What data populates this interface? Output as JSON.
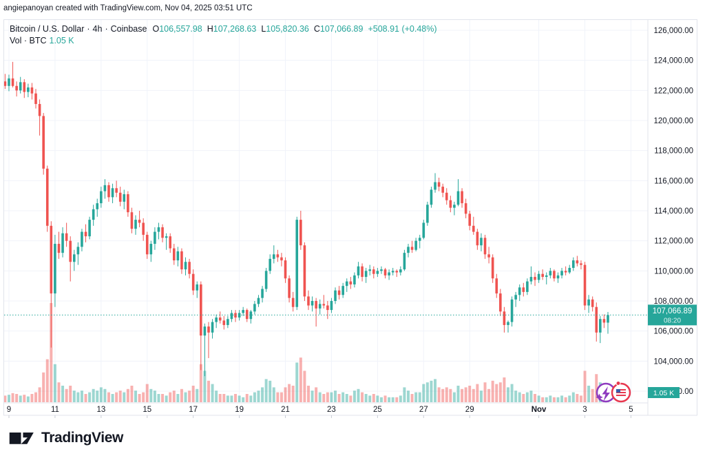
{
  "attribution": "angiepanoyan created with TradingView.com, Nov 04, 2025 03:51 UTC",
  "legend": {
    "symbol": "Bitcoin / U.S. Dollar",
    "separator": "·",
    "interval": "4h",
    "exchange": "Coinbase",
    "o_label": "O",
    "o_value": "106,557.98",
    "h_label": "H",
    "h_value": "107,268.63",
    "l_label": "L",
    "l_value": "105,820.36",
    "c_label": "C",
    "c_value": "107,066.89",
    "change": "+508.91 (+0.48%)",
    "vol_label": "Vol · BTC",
    "vol_value": "1.05 K"
  },
  "price_badge": {
    "price": "107,066.89",
    "countdown": "08:20"
  },
  "volume_badge": {
    "label": "1.05 K"
  },
  "logo_text": "TradingView",
  "events": [
    {
      "name": "crypto-event-marker",
      "icon": "lightning-sparkle"
    },
    {
      "name": "us-economic-event-marker",
      "icon": "us-flag"
    }
  ],
  "colors": {
    "up": "#26a69a",
    "down": "#ef5350",
    "vol_up": "rgba(38,166,154,0.45)",
    "vol_down": "rgba(239,83,80,0.45)",
    "grid": "#f0f3fa",
    "border": "#e0e3eb",
    "tick": "#c9cdd6",
    "text": "#131722",
    "badge_bg": "#26a69a",
    "badge_text": "#ffffff",
    "event_purple": "#8e3bbf",
    "event_red": "#e8384f",
    "flag_blue": "#3b5aa9"
  },
  "chart_data": {
    "type": "candlestick+volume",
    "title": "Bitcoin / U.S. Dollar",
    "exchange": "Coinbase",
    "candle_interval": "4h",
    "current_price": 107066.89,
    "current_price_label": "107,066.89",
    "countdown": "08:20",
    "current_volume_label": "1.05 K",
    "y_axis": {
      "labels": [
        {
          "text": "126,000.00",
          "price": 126000
        },
        {
          "text": "124,000.00",
          "price": 124000
        },
        {
          "text": "122,000.00",
          "price": 122000
        },
        {
          "text": "120,000.00",
          "price": 120000
        },
        {
          "text": "118,000.00",
          "price": 118000
        },
        {
          "text": "116,000.00",
          "price": 116000
        },
        {
          "text": "114,000.00",
          "price": 114000
        },
        {
          "text": "112,000.00",
          "price": 112000
        },
        {
          "text": "110,000.00",
          "price": 110000
        },
        {
          "text": "108,000.00",
          "price": 108000
        },
        {
          "text": "106,000.00",
          "price": 106000
        },
        {
          "text": "104,000.00",
          "price": 104000
        },
        {
          "text": "102,000.00",
          "price": 102000
        }
      ]
    },
    "x_axis": {
      "ticks": [
        {
          "label": "9",
          "day": 0,
          "bold": false
        },
        {
          "label": "11",
          "day": 2,
          "bold": false
        },
        {
          "label": "13",
          "day": 4,
          "bold": false
        },
        {
          "label": "15",
          "day": 6,
          "bold": false
        },
        {
          "label": "17",
          "day": 8,
          "bold": false
        },
        {
          "label": "19",
          "day": 10,
          "bold": false
        },
        {
          "label": "21",
          "day": 12,
          "bold": false
        },
        {
          "label": "23",
          "day": 14,
          "bold": false
        },
        {
          "label": "25",
          "day": 16,
          "bold": false
        },
        {
          "label": "27",
          "day": 18,
          "bold": false
        },
        {
          "label": "29",
          "day": 20,
          "bold": false
        },
        {
          "label": "Nov",
          "day": 23,
          "bold": true
        },
        {
          "label": "3",
          "day": 25,
          "bold": false
        },
        {
          "label": "5",
          "day": 27,
          "bold": false
        }
      ]
    },
    "candles": [
      [
        122600,
        123100,
        122100,
        122300,
        0.4
      ],
      [
        122300,
        123050,
        121950,
        122800,
        0.45
      ],
      [
        122800,
        123900,
        122200,
        122300,
        0.55
      ],
      [
        122300,
        122600,
        121600,
        122000,
        0.5
      ],
      [
        122000,
        122900,
        121800,
        122550,
        0.4
      ],
      [
        122550,
        122750,
        121500,
        121900,
        0.45
      ],
      [
        121900,
        122450,
        121550,
        122200,
        0.35
      ],
      [
        122200,
        122500,
        121400,
        121800,
        0.5
      ],
      [
        121800,
        122100,
        120800,
        121100,
        0.6
      ],
      [
        121100,
        121400,
        119000,
        120300,
        0.9
      ],
      [
        120300,
        120500,
        116400,
        116800,
        1.8
      ],
      [
        116800,
        117000,
        112600,
        113000,
        2.6
      ],
      [
        113000,
        113300,
        104900,
        108500,
        6.0
      ],
      [
        108500,
        112400,
        107600,
        111800,
        2.3
      ],
      [
        111800,
        112600,
        110800,
        111200,
        1.2
      ],
      [
        111200,
        112900,
        110900,
        112500,
        1.0
      ],
      [
        112500,
        113200,
        111600,
        112000,
        0.8
      ],
      [
        112000,
        112300,
        109300,
        110600,
        1.0
      ],
      [
        110600,
        111400,
        110000,
        111100,
        0.7
      ],
      [
        111100,
        111900,
        110400,
        111600,
        0.6
      ],
      [
        111600,
        112800,
        111300,
        112600,
        0.7
      ],
      [
        112600,
        113100,
        111900,
        112300,
        0.5
      ],
      [
        112300,
        113600,
        112100,
        113400,
        0.6
      ],
      [
        113400,
        114400,
        113000,
        114100,
        0.8
      ],
      [
        114100,
        114800,
        113600,
        114500,
        0.7
      ],
      [
        114500,
        115600,
        114200,
        115300,
        0.9
      ],
      [
        115300,
        116100,
        114800,
        115700,
        0.8
      ],
      [
        115700,
        115900,
        114600,
        114900,
        0.6
      ],
      [
        114900,
        115800,
        114500,
        115500,
        0.5
      ],
      [
        115500,
        116000,
        114900,
        115200,
        0.6
      ],
      [
        115200,
        115600,
        114300,
        114600,
        0.7
      ],
      [
        114600,
        115400,
        114100,
        115100,
        0.6
      ],
      [
        115100,
        115300,
        113600,
        113900,
        0.8
      ],
      [
        113900,
        114200,
        112500,
        112800,
        1.0
      ],
      [
        112800,
        113700,
        112400,
        113400,
        0.7
      ],
      [
        113400,
        114000,
        112900,
        113200,
        0.5
      ],
      [
        113200,
        113500,
        112000,
        112400,
        0.6
      ],
      [
        112400,
        112600,
        110800,
        111100,
        1.1
      ],
      [
        111100,
        112000,
        110600,
        111800,
        0.8
      ],
      [
        111800,
        112900,
        111400,
        112600,
        0.7
      ],
      [
        112600,
        113200,
        112100,
        112900,
        0.5
      ],
      [
        112900,
        113100,
        111900,
        112200,
        0.5
      ],
      [
        112200,
        112500,
        111400,
        112300,
        0.4
      ],
      [
        112300,
        112500,
        111200,
        111500,
        0.6
      ],
      [
        111500,
        111800,
        110400,
        110700,
        0.7
      ],
      [
        110700,
        111600,
        110300,
        111300,
        0.5
      ],
      [
        111300,
        111500,
        109800,
        110100,
        0.8
      ],
      [
        110100,
        110900,
        109700,
        110600,
        0.6
      ],
      [
        110600,
        110800,
        109500,
        109800,
        0.7
      ],
      [
        109800,
        110100,
        108400,
        108700,
        1.0
      ],
      [
        108700,
        109300,
        108200,
        109100,
        0.8
      ],
      [
        109100,
        109300,
        103400,
        105700,
        2.3
      ],
      [
        105700,
        106500,
        103000,
        106300,
        1.9
      ],
      [
        106300,
        106600,
        104200,
        105900,
        1.3
      ],
      [
        105900,
        106800,
        105500,
        106600,
        1.1
      ],
      [
        106600,
        107100,
        106200,
        106900,
        0.7
      ],
      [
        106900,
        107300,
        106500,
        106700,
        0.5
      ],
      [
        106700,
        107000,
        106100,
        106400,
        0.5
      ],
      [
        106400,
        107000,
        106200,
        106800,
        0.4
      ],
      [
        106800,
        107400,
        106600,
        107200,
        0.4
      ],
      [
        107200,
        107400,
        106600,
        106900,
        0.5
      ],
      [
        106900,
        107400,
        106700,
        107200,
        0.4
      ],
      [
        107200,
        107600,
        107000,
        107400,
        0.3
      ],
      [
        107400,
        107500,
        106600,
        106800,
        0.5
      ],
      [
        106800,
        107400,
        106500,
        107300,
        0.4
      ],
      [
        107300,
        108000,
        107100,
        107800,
        0.6
      ],
      [
        107800,
        108400,
        107600,
        108200,
        0.7
      ],
      [
        108200,
        109000,
        107900,
        108800,
        0.9
      ],
      [
        108800,
        110200,
        108600,
        110000,
        1.4
      ],
      [
        110000,
        111100,
        109800,
        110800,
        1.3
      ],
      [
        110800,
        111700,
        110500,
        111100,
        0.9
      ],
      [
        111100,
        111400,
        110600,
        110900,
        0.6
      ],
      [
        110900,
        111200,
        110300,
        110700,
        0.6
      ],
      [
        110700,
        110900,
        109200,
        109500,
        0.9
      ],
      [
        109500,
        109700,
        107900,
        108200,
        1.1
      ],
      [
        108200,
        108600,
        107300,
        107600,
        1.0
      ],
      [
        107600,
        113600,
        107400,
        113400,
        2.4
      ],
      [
        113400,
        114000,
        111400,
        111700,
        2.7
      ],
      [
        111700,
        111900,
        108000,
        108300,
        1.9
      ],
      [
        108300,
        108700,
        107400,
        107700,
        1.0
      ],
      [
        107700,
        108300,
        107300,
        108000,
        0.7
      ],
      [
        108000,
        108200,
        106300,
        107500,
        0.9
      ],
      [
        107500,
        108100,
        107100,
        107800,
        0.6
      ],
      [
        107800,
        108400,
        107500,
        107700,
        0.5
      ],
      [
        107700,
        108000,
        106800,
        107400,
        0.6
      ],
      [
        107400,
        108200,
        107200,
        108000,
        0.6
      ],
      [
        108000,
        108900,
        107800,
        108700,
        0.7
      ],
      [
        108700,
        109000,
        108100,
        108400,
        0.5
      ],
      [
        108400,
        109200,
        108200,
        109000,
        0.6
      ],
      [
        109000,
        109500,
        108600,
        109300,
        0.5
      ],
      [
        109300,
        109600,
        108800,
        109100,
        0.4
      ],
      [
        109100,
        109900,
        108900,
        109700,
        0.7
      ],
      [
        109700,
        110600,
        109500,
        110300,
        0.8
      ],
      [
        110300,
        110500,
        109300,
        109600,
        0.6
      ],
      [
        109600,
        110200,
        109200,
        110000,
        0.5
      ],
      [
        110000,
        110400,
        109700,
        110100,
        0.4
      ],
      [
        110100,
        110300,
        109500,
        109800,
        0.5
      ],
      [
        109800,
        110200,
        109600,
        110000,
        0.4
      ],
      [
        110000,
        110300,
        109800,
        110100,
        0.3
      ],
      [
        110100,
        110200,
        109500,
        109700,
        0.4
      ],
      [
        109700,
        110100,
        109400,
        109900,
        0.3
      ],
      [
        109900,
        110200,
        109700,
        110000,
        0.3
      ],
      [
        110000,
        110100,
        109600,
        109900,
        0.3
      ],
      [
        109900,
        110300,
        109700,
        110100,
        0.4
      ],
      [
        110100,
        111400,
        110000,
        111200,
        0.9
      ],
      [
        111200,
        111800,
        110900,
        111600,
        0.7
      ],
      [
        111600,
        112000,
        111200,
        111400,
        0.5
      ],
      [
        111400,
        112200,
        111300,
        112000,
        0.6
      ],
      [
        112000,
        112400,
        111500,
        112200,
        0.6
      ],
      [
        112200,
        113400,
        112100,
        113200,
        1.1
      ],
      [
        113200,
        114600,
        113000,
        114400,
        1.2
      ],
      [
        114400,
        115600,
        114200,
        115400,
        1.3
      ],
      [
        115400,
        116500,
        115200,
        115900,
        1.4
      ],
      [
        115900,
        116200,
        115300,
        115600,
        0.9
      ],
      [
        115600,
        115800,
        114900,
        115200,
        0.8
      ],
      [
        115200,
        115500,
        114400,
        114700,
        0.9
      ],
      [
        114700,
        115000,
        113900,
        114200,
        0.8
      ],
      [
        114200,
        114600,
        113700,
        114400,
        0.6
      ],
      [
        114400,
        116100,
        114300,
        115300,
        1.0
      ],
      [
        115300,
        115500,
        114200,
        114500,
        0.8
      ],
      [
        114500,
        114800,
        113500,
        113800,
        0.9
      ],
      [
        113800,
        114000,
        112700,
        113000,
        1.0
      ],
      [
        113000,
        113600,
        112400,
        112600,
        0.8
      ],
      [
        112600,
        112800,
        111400,
        111700,
        1.1
      ],
      [
        111700,
        112500,
        111300,
        112200,
        0.7
      ],
      [
        112200,
        112400,
        110800,
        111100,
        1.2
      ],
      [
        111100,
        111600,
        110500,
        110900,
        0.8
      ],
      [
        110900,
        111100,
        109200,
        109500,
        1.3
      ],
      [
        109500,
        109800,
        108200,
        108500,
        1.1
      ],
      [
        108500,
        108800,
        107000,
        107300,
        1.2
      ],
      [
        107300,
        107600,
        105900,
        106400,
        1.5
      ],
      [
        106400,
        106700,
        105900,
        106600,
        0.9
      ],
      [
        106600,
        108300,
        106300,
        108100,
        1.1
      ],
      [
        108100,
        108600,
        107600,
        108400,
        0.7
      ],
      [
        108400,
        109100,
        108000,
        108900,
        0.6
      ],
      [
        108900,
        109200,
        108300,
        108600,
        0.5
      ],
      [
        108600,
        109500,
        108400,
        109300,
        0.6
      ],
      [
        109300,
        110300,
        109100,
        109600,
        0.7
      ],
      [
        109600,
        109900,
        109000,
        109400,
        0.5
      ],
      [
        109400,
        110000,
        109200,
        109800,
        0.4
      ],
      [
        109800,
        110100,
        109400,
        109600,
        0.3
      ],
      [
        109600,
        109900,
        109100,
        109700,
        0.3
      ],
      [
        109700,
        110200,
        109500,
        110000,
        0.4
      ],
      [
        110000,
        110100,
        109300,
        109500,
        0.3
      ],
      [
        109500,
        109900,
        109200,
        109700,
        0.3
      ],
      [
        109700,
        110200,
        109500,
        110000,
        0.4
      ],
      [
        110000,
        110300,
        109700,
        109900,
        0.3
      ],
      [
        109900,
        110400,
        109800,
        110200,
        0.4
      ],
      [
        110200,
        110900,
        110000,
        110700,
        0.6
      ],
      [
        110700,
        111000,
        110300,
        110500,
        0.5
      ],
      [
        110500,
        110700,
        110100,
        110400,
        0.4
      ],
      [
        110400,
        110600,
        107400,
        107700,
        1.9
      ],
      [
        107700,
        108400,
        107200,
        108100,
        1.0
      ],
      [
        108100,
        108300,
        107300,
        107600,
        0.8
      ],
      [
        107600,
        107900,
        105300,
        105900,
        1.7
      ],
      [
        105900,
        107000,
        105200,
        106800,
        1.2
      ],
      [
        106800,
        107100,
        106200,
        106560,
        0.9
      ],
      [
        106557.98,
        107268.63,
        105820.36,
        107066.89,
        1.05
      ]
    ]
  }
}
